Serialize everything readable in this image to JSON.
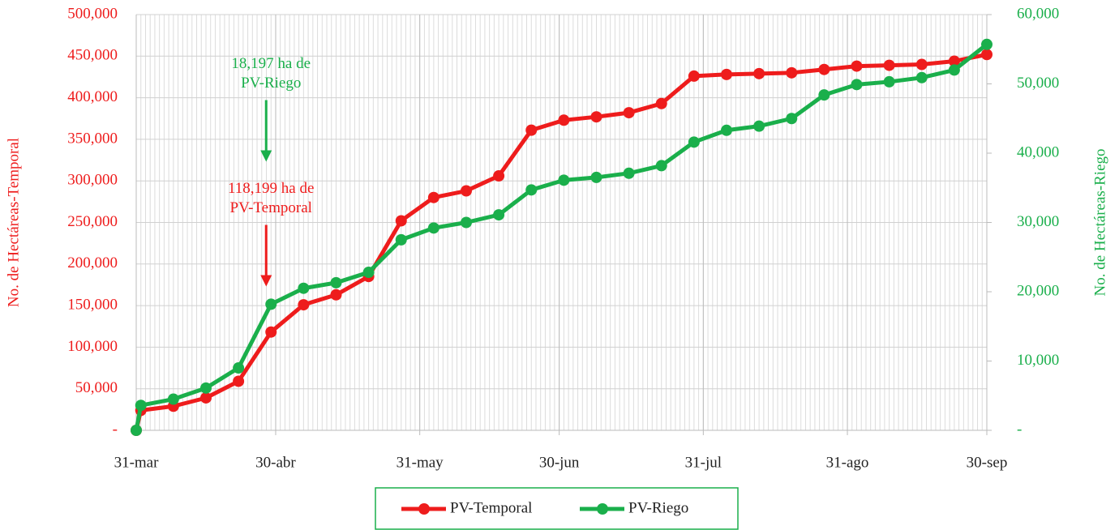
{
  "chart_data": {
    "type": "line",
    "y_label": "No. de Hectáreas-Temporal",
    "y2_label": "No. de Hectáreas-Riego",
    "x": [
      0,
      1,
      8,
      15,
      22,
      29,
      36,
      43,
      50,
      57,
      64,
      71,
      78,
      85,
      92,
      99,
      106,
      113,
      120,
      127,
      134,
      141,
      148,
      155,
      162,
      169,
      176,
      183
    ],
    "xlim": [
      0,
      183
    ],
    "xticks": [
      {
        "value": 0,
        "label": "31-mar"
      },
      {
        "value": 30,
        "label": "30-abr"
      },
      {
        "value": 61,
        "label": "31-may"
      },
      {
        "value": 91,
        "label": "30-jun"
      },
      {
        "value": 122,
        "label": "31-jul"
      },
      {
        "value": 153,
        "label": "31-ago"
      },
      {
        "value": 183,
        "label": "30-sep"
      }
    ],
    "ylim": [
      0,
      500000
    ],
    "yticks": [
      {
        "value": 0,
        "label": "-"
      },
      {
        "value": 50000,
        "label": "50,000"
      },
      {
        "value": 100000,
        "label": "100,000"
      },
      {
        "value": 150000,
        "label": "150,000"
      },
      {
        "value": 200000,
        "label": "200,000"
      },
      {
        "value": 250000,
        "label": "250,000"
      },
      {
        "value": 300000,
        "label": "300,000"
      },
      {
        "value": 350000,
        "label": "350,000"
      },
      {
        "value": 400000,
        "label": "400,000"
      },
      {
        "value": 450000,
        "label": "450,000"
      },
      {
        "value": 500000,
        "label": "500,000"
      }
    ],
    "y2lim": [
      0,
      60000
    ],
    "y2ticks": [
      {
        "value": 0,
        "label": "-"
      },
      {
        "value": 10000,
        "label": "10,000"
      },
      {
        "value": 20000,
        "label": "20,000"
      },
      {
        "value": 30000,
        "label": "30,000"
      },
      {
        "value": 40000,
        "label": "40,000"
      },
      {
        "value": 50000,
        "label": "50,000"
      },
      {
        "value": 60000,
        "label": "60,000"
      }
    ],
    "grid": true,
    "series": [
      {
        "name": "PV-Temporal",
        "color": "#ee1c1c",
        "values": [
          0,
          24000,
          29000,
          39000,
          59000,
          118199,
          151000,
          163000,
          185000,
          252000,
          280000,
          288000,
          306000,
          361000,
          373000,
          377000,
          382000,
          393000,
          426000,
          428000,
          429000,
          430000,
          434000,
          438000,
          439000,
          440000,
          444000,
          452000
        ]
      },
      {
        "name": "PV-Riego",
        "color": "#1aaf4b",
        "axis": "y2",
        "values": [
          0,
          3600,
          4500,
          6100,
          9000,
          18197,
          20500,
          21300,
          22800,
          27500,
          29200,
          30000,
          31100,
          34700,
          36100,
          36500,
          37100,
          38200,
          41600,
          43300,
          43900,
          45000,
          48400,
          49900,
          50300,
          50900,
          52000,
          55700
        ]
      }
    ],
    "annotations": [
      {
        "lines": [
          "18,197 ha de",
          "PV-Riego"
        ],
        "color": "#1aaf4b",
        "x": 29,
        "y": 440000
      },
      {
        "lines": [
          "118,199 ha de",
          "PV-Temporal"
        ],
        "color": "#ee1c1c",
        "x": 29,
        "y": 290000
      }
    ],
    "legend": "bottom"
  }
}
